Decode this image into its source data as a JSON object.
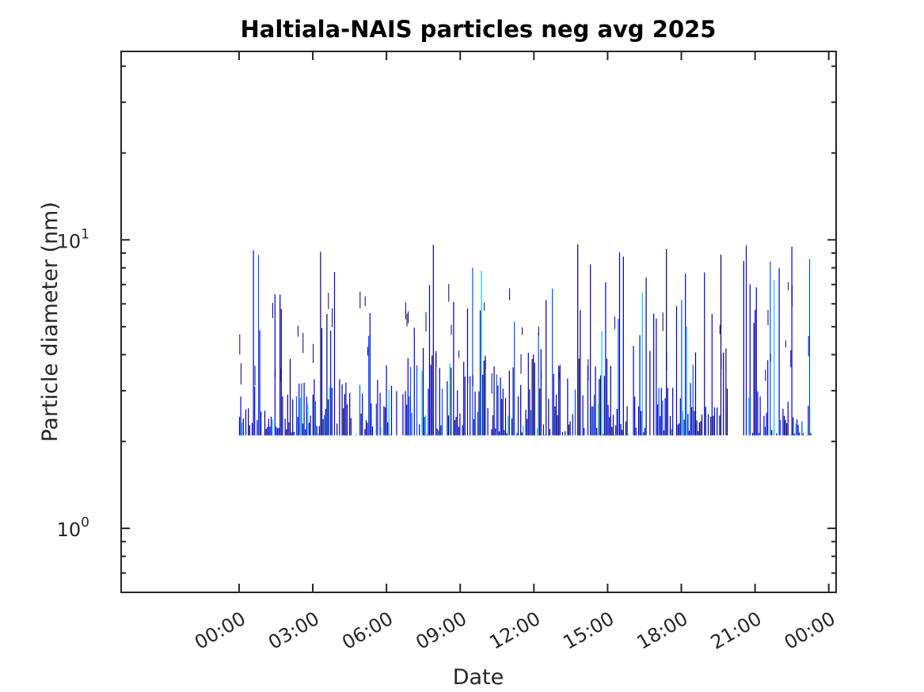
{
  "chart_data": {
    "type": "heatmap",
    "title": "Haltiala-NAIS particles neg avg 2025",
    "xlabel": "Date",
    "ylabel": "Particle diameter (nm)",
    "y_scale": "log",
    "ylim": [
      0.6,
      45
    ],
    "y_ticks": [
      {
        "value": 1,
        "base": "10",
        "exp": "0"
      },
      {
        "value": 10,
        "base": "10",
        "exp": "1"
      }
    ],
    "xlim_hours": [
      -4.8,
      24.3
    ],
    "x_ticks": [
      {
        "value": 0,
        "label": "00:00"
      },
      {
        "value": 3,
        "label": "03:00"
      },
      {
        "value": 6,
        "label": "06:00"
      },
      {
        "value": 9,
        "label": "09:00"
      },
      {
        "value": 12,
        "label": "12:00"
      },
      {
        "value": 15,
        "label": "15:00"
      },
      {
        "value": 18,
        "label": "18:00"
      },
      {
        "value": 21,
        "label": "21:00"
      },
      {
        "value": 24,
        "label": "00:00"
      }
    ],
    "data_extent": {
      "time_start_hour": 0.0,
      "time_end_hour": 23.3,
      "diameter_min_nm": 2.1,
      "diameter_max_nm": 9.8
    },
    "colormap": [
      "#00007f",
      "#0000d6",
      "#0050ff",
      "#00c8ff",
      "#5cffa0",
      "#f0ff10"
    ],
    "grid": false,
    "legend": "none"
  }
}
